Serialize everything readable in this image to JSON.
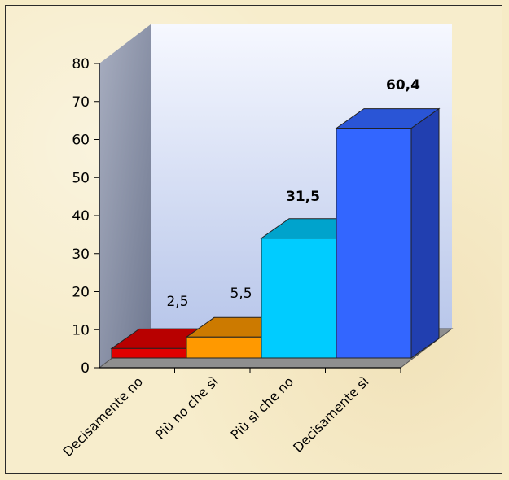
{
  "chart_data": {
    "type": "bar",
    "categories": [
      "Decisamente no",
      "Più no che sì",
      "Più sì che no",
      "Decisamente sì"
    ],
    "values": [
      2.5,
      5.5,
      31.5,
      60.4
    ],
    "value_labels": [
      "2,5",
      "5,5",
      "31,5",
      "60,4"
    ],
    "bold_value_labels": [
      false,
      false,
      true,
      true
    ],
    "ylim": [
      0,
      80
    ],
    "yticks": [
      "0",
      "10",
      "20",
      "30",
      "40",
      "50",
      "60",
      "70",
      "80"
    ],
    "grid": false,
    "three_d": true,
    "colors": {
      "bars": [
        "#e00000",
        "#ff9900",
        "#00ccff",
        "#3366ff"
      ],
      "bar_tops": [
        "#b80000",
        "#cc7a00",
        "#00a3cc",
        "#2a55d6"
      ],
      "bar_sides": [
        "#8f0000",
        "#a86300",
        "#0085a8",
        "#213fb0"
      ],
      "wall_left": "#8f97ad",
      "wall_back_top": "#f4f7ff",
      "wall_back_bottom": "#b8c6e8",
      "floor": "#8a8a8a"
    }
  }
}
